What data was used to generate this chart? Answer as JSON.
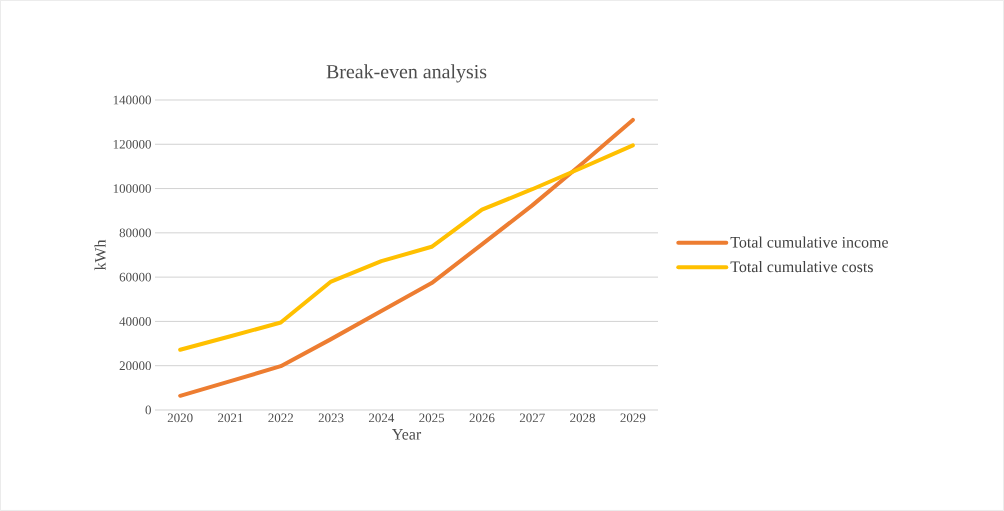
{
  "chart_data": {
    "type": "line",
    "title": "Break-even analysis",
    "xlabel": "Year",
    "ylabel": "kWh",
    "categories": [
      "2020",
      "2021",
      "2022",
      "2023",
      "2024",
      "2025",
      "2026",
      "2027",
      "2028",
      "2029"
    ],
    "series": [
      {
        "name": "Total cumulative income",
        "color": "#ed7d31",
        "values": [
          6400,
          13000,
          19800,
          32000,
          44700,
          57300,
          74800,
          92400,
          111400,
          131000
        ]
      },
      {
        "name": "Total cumulative costs",
        "color": "#ffc000",
        "values": [
          27200,
          33300,
          39500,
          58000,
          67200,
          73700,
          90500,
          99700,
          109500,
          119500
        ]
      }
    ],
    "ylim": [
      0,
      140000
    ],
    "yticks": [
      0,
      20000,
      40000,
      60000,
      80000,
      100000,
      120000,
      140000
    ],
    "grid": "y",
    "legend": "right",
    "marker": "none",
    "line_style": "solid"
  }
}
